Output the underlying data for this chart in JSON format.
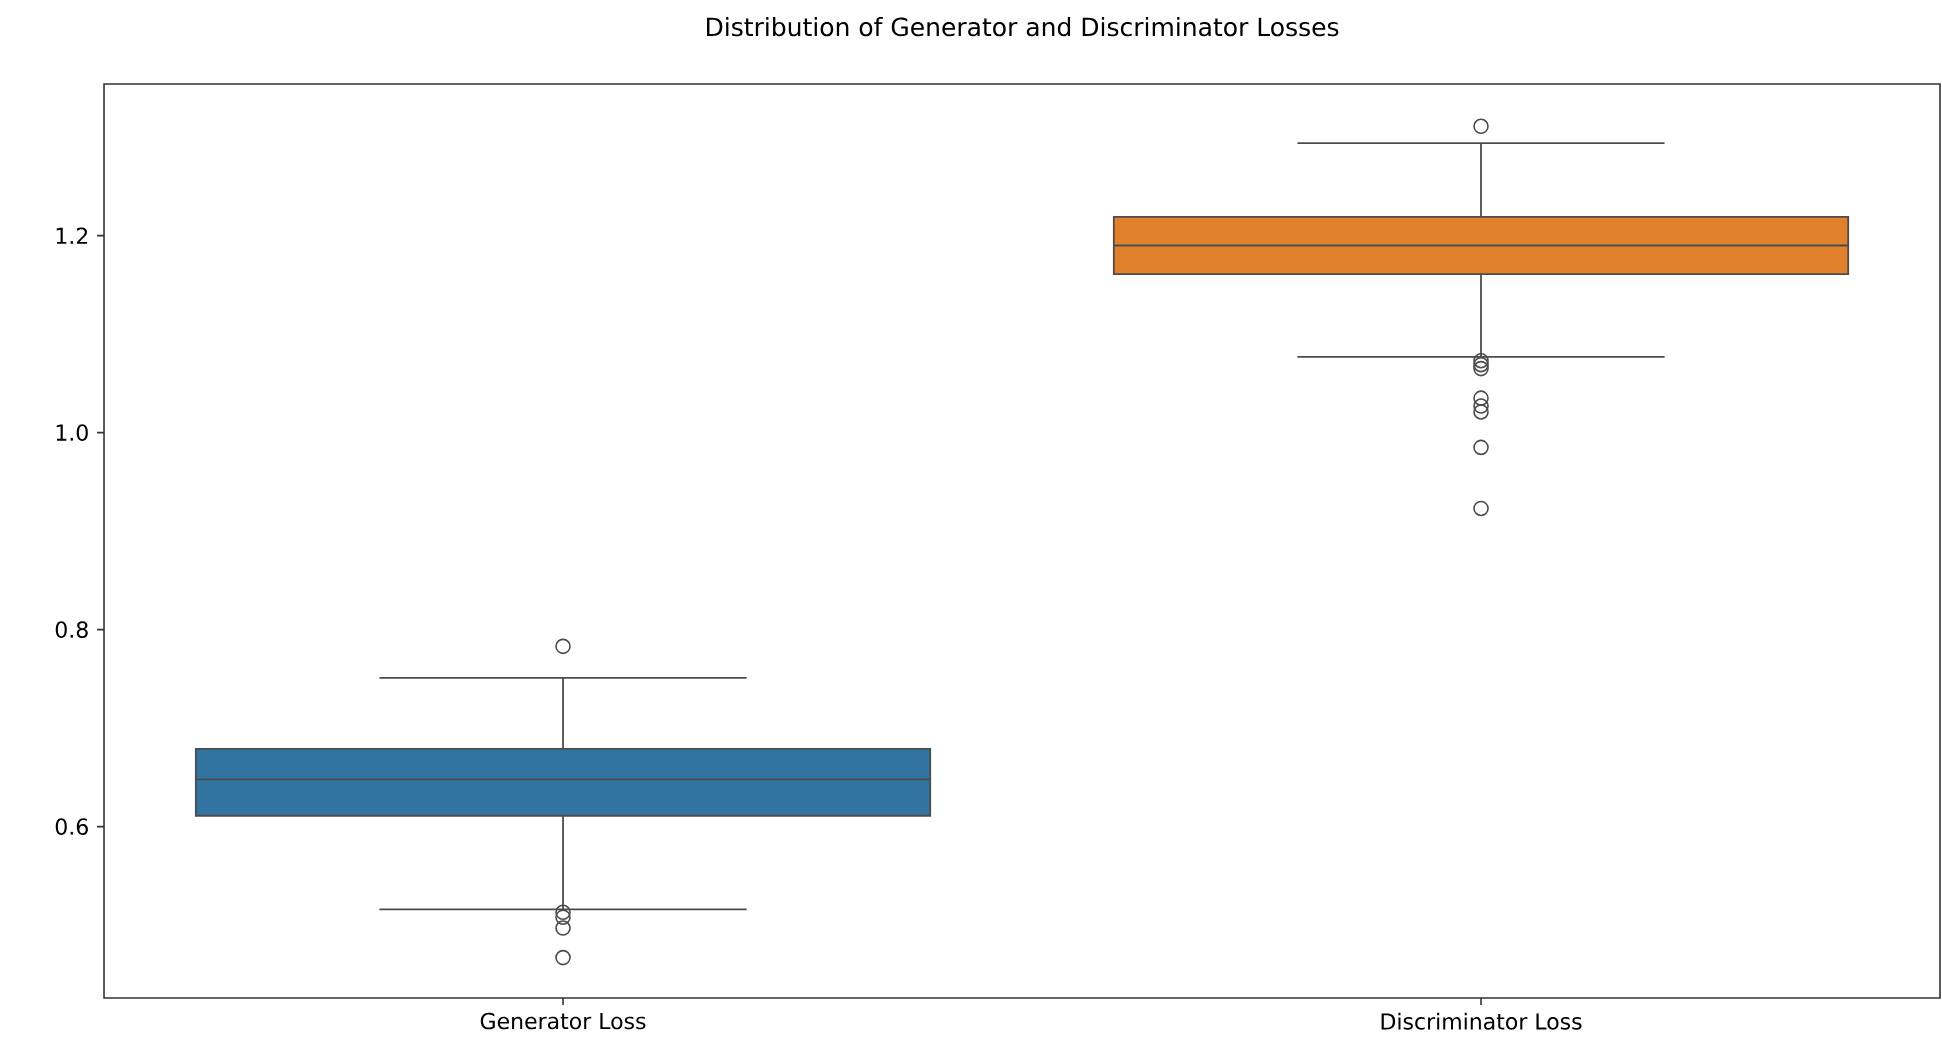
{
  "chart_data": {
    "type": "box",
    "title": "Distribution of Generator and Discriminator Losses",
    "categories": [
      "Generator Loss",
      "Discriminator Loss"
    ],
    "colors": [
      "#3274a1",
      "#e1812c"
    ],
    "boxes": [
      {
        "low": 0.516,
        "q1": 0.611,
        "median": 0.648,
        "q3": 0.679,
        "high": 0.751,
        "outliers": [
          0.783,
          0.513,
          0.508,
          0.497,
          0.467
        ]
      },
      {
        "low": 1.077,
        "q1": 1.161,
        "median": 1.19,
        "q3": 1.219,
        "high": 1.294,
        "outliers": [
          1.311,
          1.073,
          1.069,
          1.065,
          1.035,
          1.027,
          1.021,
          0.985,
          0.923
        ]
      }
    ],
    "ylim": [
      0.426,
      1.354
    ],
    "yticks": [
      0.6,
      0.8,
      {
        "value": 1,
        "label": "1.0"
      },
      1.2
    ]
  }
}
